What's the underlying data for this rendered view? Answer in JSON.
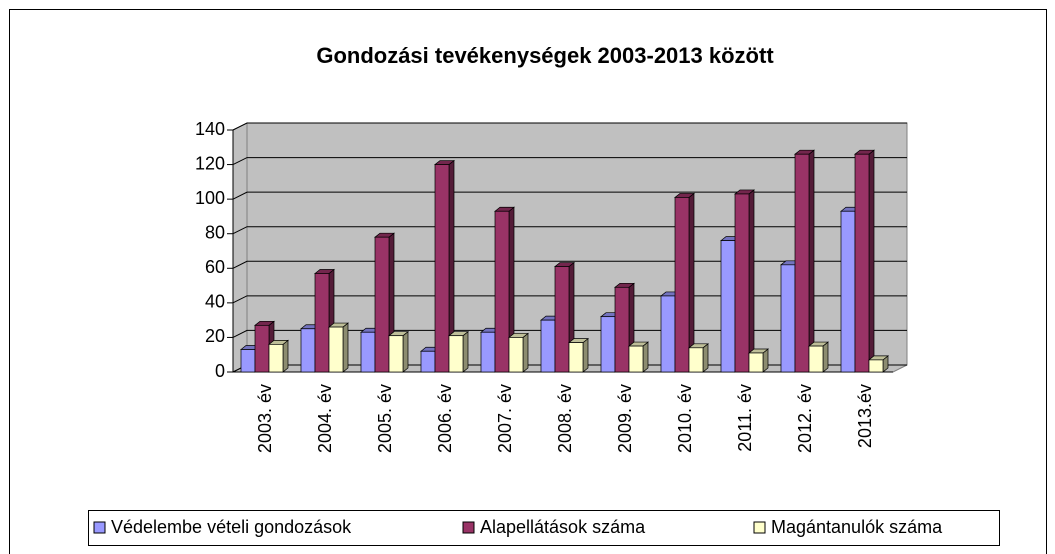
{
  "chart_data": {
    "type": "bar3d",
    "title": "Gondozási tevékenységek 2003-2013 között",
    "categories": [
      "2003. év",
      "2004. év",
      "2005. év",
      "2006. év",
      "2007. év",
      "2008. év",
      "2009. év",
      "2010. év",
      "2011. év",
      "2012. év",
      "2013.év"
    ],
    "series": [
      {
        "name": "Védelembe vételi gondozások",
        "color": "#9999ff",
        "values": [
          13,
          25,
          23,
          12,
          23,
          30,
          32,
          44,
          76,
          62,
          93
        ]
      },
      {
        "name": "Alapellátások száma",
        "color": "#993366",
        "values": [
          27,
          57,
          78,
          120,
          93,
          61,
          49,
          101,
          103,
          126,
          126
        ]
      },
      {
        "name": "Magántanulók száma",
        "color": "#ffffcc",
        "values": [
          16,
          26,
          21,
          21,
          20,
          17,
          15,
          14,
          11,
          15,
          7
        ]
      }
    ],
    "ylim": [
      0,
      140
    ],
    "yticks": [
      0,
      20,
      40,
      60,
      80,
      100,
      120,
      140
    ],
    "grid": true,
    "legend": "bottom"
  }
}
